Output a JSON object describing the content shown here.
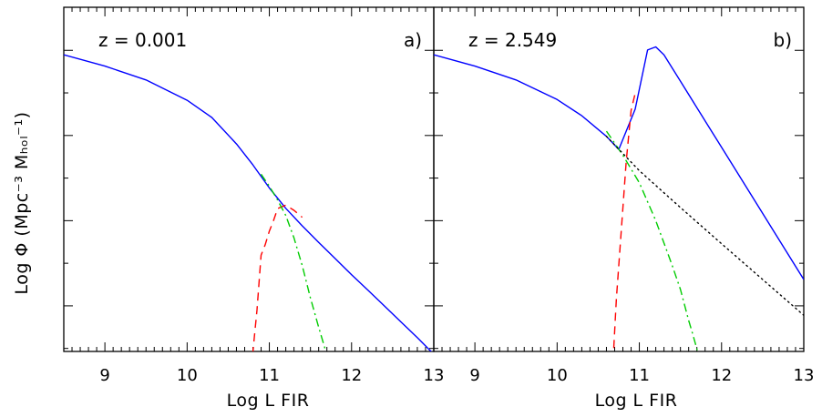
{
  "chart_data": [
    {
      "type": "line",
      "panel_tag": "a)",
      "redshift_label": "z = 0.001",
      "xlabel": "Log L FIR",
      "ylabel": "Log Φ  (Mpc⁻³ Mₕₒₗ⁻¹)",
      "xlim": [
        8.5,
        13.0
      ],
      "ylim": [
        0,
        1
      ],
      "xticks": [
        "9",
        "10",
        "11",
        "12",
        "13"
      ],
      "y_tick_labels_printed": false,
      "series": [
        {
          "style": "solid",
          "color": "#0000ff",
          "x": [
            8.5,
            9.0,
            9.5,
            10.0,
            10.3,
            10.6,
            10.8,
            11.0,
            11.2,
            11.4,
            11.6,
            11.8,
            12.0,
            12.2,
            12.4,
            12.6,
            12.8,
            13.0
          ],
          "y": [
            0.862,
            0.829,
            0.789,
            0.73,
            0.68,
            0.603,
            0.542,
            0.475,
            0.416,
            0.365,
            0.317,
            0.27,
            0.223,
            0.178,
            0.132,
            0.086,
            0.04,
            -0.008
          ]
        },
        {
          "style": "dashed",
          "color": "#ff0000",
          "x": [
            10.78,
            10.85,
            10.9,
            10.95,
            11.0,
            11.05,
            11.1,
            11.15,
            11.2,
            11.3,
            11.4
          ],
          "y": [
            -0.05,
            0.12,
            0.28,
            0.31,
            0.35,
            0.38,
            0.415,
            0.42,
            0.425,
            0.41,
            0.39
          ]
        },
        {
          "style": "dash-dot",
          "color": "#00cc00",
          "x": [
            10.9,
            11.0,
            11.1,
            11.2,
            11.3,
            11.4,
            11.5,
            11.6,
            11.7
          ],
          "y": [
            0.515,
            0.48,
            0.44,
            0.395,
            0.33,
            0.25,
            0.155,
            0.07,
            -0.01
          ]
        }
      ]
    },
    {
      "type": "line",
      "panel_tag": "b)",
      "redshift_label": "z = 2.549",
      "xlabel": "Log L FIR",
      "xlim": [
        8.5,
        13.0
      ],
      "ylim": [
        0,
        1
      ],
      "xticks": [
        "9",
        "10",
        "11",
        "12",
        "13"
      ],
      "y_tick_labels_printed": false,
      "series": [
        {
          "style": "solid",
          "color": "#0000ff",
          "x": [
            8.5,
            9.0,
            9.5,
            10.0,
            10.3,
            10.6,
            10.75,
            10.95,
            11.1,
            11.2,
            11.3,
            11.5,
            11.8,
            12.0,
            12.5,
            13.0
          ],
          "y": [
            0.862,
            0.829,
            0.789,
            0.732,
            0.685,
            0.625,
            0.587,
            0.704,
            0.876,
            0.885,
            0.862,
            0.785,
            0.67,
            0.593,
            0.401,
            0.209
          ]
        },
        {
          "style": "dashed",
          "color": "#ff0000",
          "x": [
            10.68,
            10.72,
            10.78,
            10.84,
            10.9,
            10.96
          ],
          "y": [
            -0.03,
            0.15,
            0.35,
            0.55,
            0.7,
            0.76
          ]
        },
        {
          "style": "dash-dot",
          "color": "#00cc00",
          "x": [
            10.6,
            10.8,
            11.0,
            11.2,
            11.4,
            11.5,
            11.6,
            11.65,
            11.72
          ],
          "y": [
            0.64,
            0.57,
            0.49,
            0.38,
            0.25,
            0.18,
            0.09,
            0.05,
            -0.01
          ]
        },
        {
          "style": "dotted",
          "color": "#000000",
          "x": [
            10.6,
            11.0,
            11.5,
            12.0,
            12.5,
            13.0
          ],
          "y": [
            0.625,
            0.525,
            0.418,
            0.313,
            0.209,
            0.105
          ]
        }
      ]
    }
  ]
}
